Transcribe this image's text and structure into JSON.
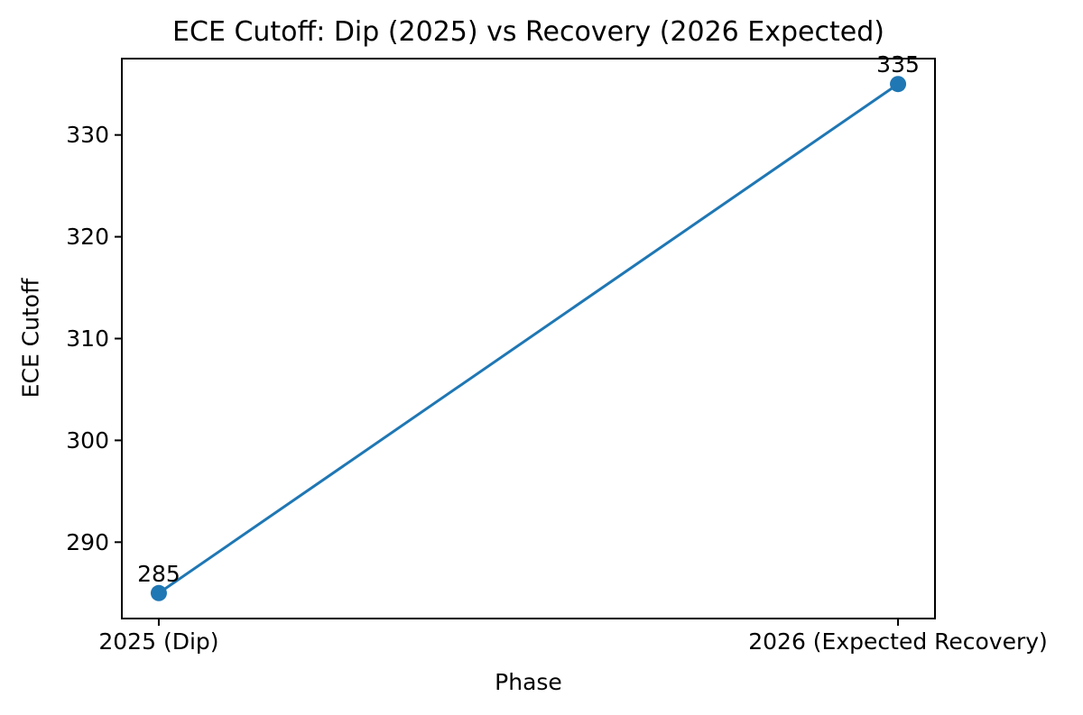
{
  "chart_data": {
    "type": "line",
    "title": "ECE Cutoff: Dip (2025) vs Recovery (2026 Expected)",
    "xlabel": "Phase",
    "ylabel": "ECE Cutoff",
    "categories": [
      "2025 (Dip)",
      "2026 (Expected Recovery)"
    ],
    "values": [
      285,
      335
    ],
    "point_labels": [
      "285",
      "335"
    ],
    "yticks": [
      290,
      300,
      310,
      320,
      330
    ],
    "ylim": [
      282.5,
      337.5
    ],
    "xlim": [
      -0.05,
      1.05
    ],
    "x_positions": [
      0,
      1
    ],
    "grid": false,
    "legend": "none",
    "colors": {
      "line": "#1f77b4",
      "marker": "#1f77b4",
      "spine": "#000000",
      "text": "#000000",
      "background": "#ffffff"
    }
  }
}
